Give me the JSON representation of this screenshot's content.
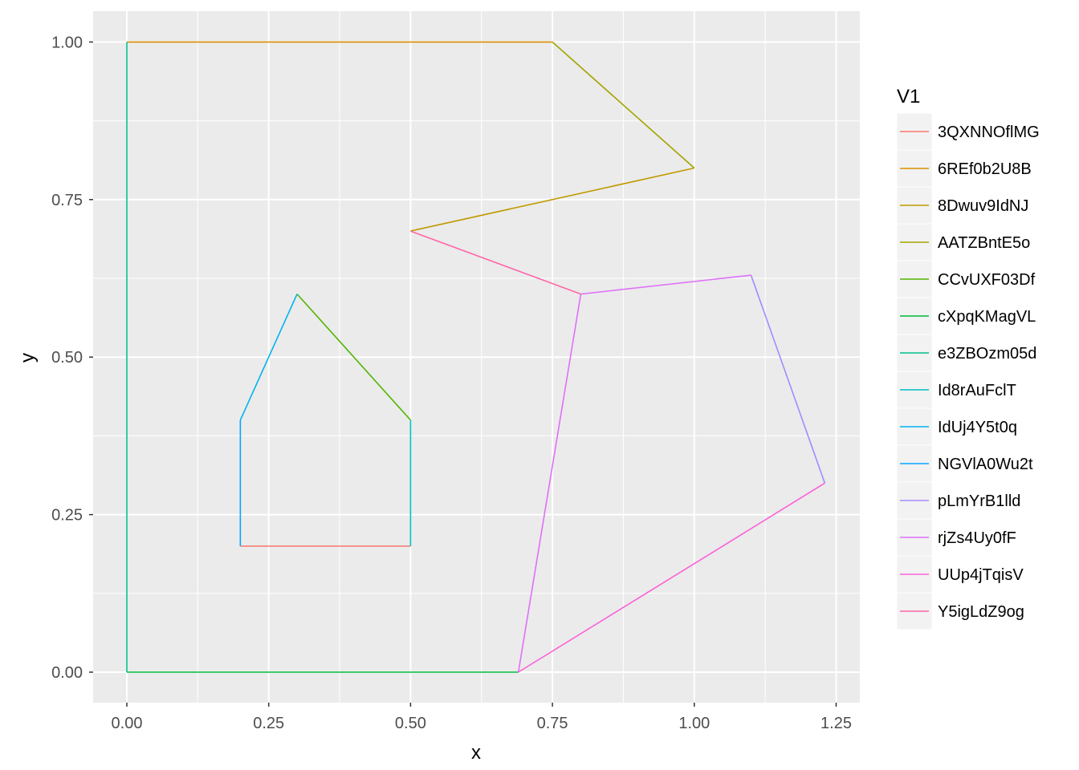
{
  "chart_data": {
    "type": "line",
    "xlabel": "x",
    "ylabel": "y",
    "xlim": [
      -0.06,
      1.29
    ],
    "ylim": [
      -0.05,
      1.05
    ],
    "x_ticks": [
      0.0,
      0.25,
      0.5,
      0.75,
      1.0,
      1.25
    ],
    "x_tick_labels": [
      "0.00",
      "0.25",
      "0.50",
      "0.75",
      "1.00",
      "1.25"
    ],
    "y_ticks": [
      0.0,
      0.25,
      0.5,
      0.75,
      1.0
    ],
    "y_tick_labels": [
      "0.00",
      "0.25",
      "0.50",
      "0.75",
      "1.00"
    ],
    "grid": true,
    "panel_background": "#ebebeb",
    "grid_color": "#ffffff",
    "legend": {
      "title": "V1",
      "placement": "right"
    },
    "series": [
      {
        "name": "3QXNNOflMG",
        "color": "#F8766D",
        "x": [
          0.2,
          0.5
        ],
        "y": [
          0.2,
          0.2
        ]
      },
      {
        "name": "6REf0b2U8B",
        "color": "#DB8E00",
        "x": [
          0.0,
          0.75
        ],
        "y": [
          1.0,
          1.0
        ]
      },
      {
        "name": "8Dwuv9IdNJ",
        "color": "#C09B00",
        "x": [
          0.5,
          1.0
        ],
        "y": [
          0.7,
          0.8
        ]
      },
      {
        "name": "AATZBntE5o",
        "color": "#A3A500",
        "x": [
          0.75,
          1.0
        ],
        "y": [
          1.0,
          0.8
        ]
      },
      {
        "name": "CCvUXF03Df",
        "color": "#53B400",
        "x": [
          0.3,
          0.5
        ],
        "y": [
          0.6,
          0.4
        ]
      },
      {
        "name": "cXpqKMagVL",
        "color": "#00BA38",
        "x": [
          0.0,
          0.69
        ],
        "y": [
          0.0,
          0.0
        ]
      },
      {
        "name": "e3ZBOzm05d",
        "color": "#00C08B",
        "x": [
          0.0,
          0.0
        ],
        "y": [
          0.0,
          1.0
        ]
      },
      {
        "name": "Id8rAuFclT",
        "color": "#00BFC4",
        "x": [
          0.5,
          0.5
        ],
        "y": [
          0.2,
          0.4
        ]
      },
      {
        "name": "IdUj4Y5t0q",
        "color": "#00B4F0",
        "x": [
          0.2,
          0.3
        ],
        "y": [
          0.4,
          0.6
        ]
      },
      {
        "name": "NGVlA0Wu2t",
        "color": "#06A4FF",
        "x": [
          0.2,
          0.2
        ],
        "y": [
          0.2,
          0.4
        ]
      },
      {
        "name": "pLmYrB1lld",
        "color": "#A58AFF",
        "x": [
          1.1,
          1.23
        ],
        "y": [
          0.63,
          0.3
        ]
      },
      {
        "name": "rjZs4Uy0fF",
        "color": "#DF70F8",
        "x": [
          0.69,
          0.8,
          1.1
        ],
        "y": [
          0.0,
          0.6,
          0.63
        ]
      },
      {
        "name": "UUp4jTqisV",
        "color": "#FB61D7",
        "x": [
          0.69,
          1.23
        ],
        "y": [
          0.0,
          0.3
        ]
      },
      {
        "name": "Y5igLdZ9og",
        "color": "#FF66A8",
        "x": [
          0.5,
          0.8
        ],
        "y": [
          0.7,
          0.6
        ]
      }
    ]
  }
}
